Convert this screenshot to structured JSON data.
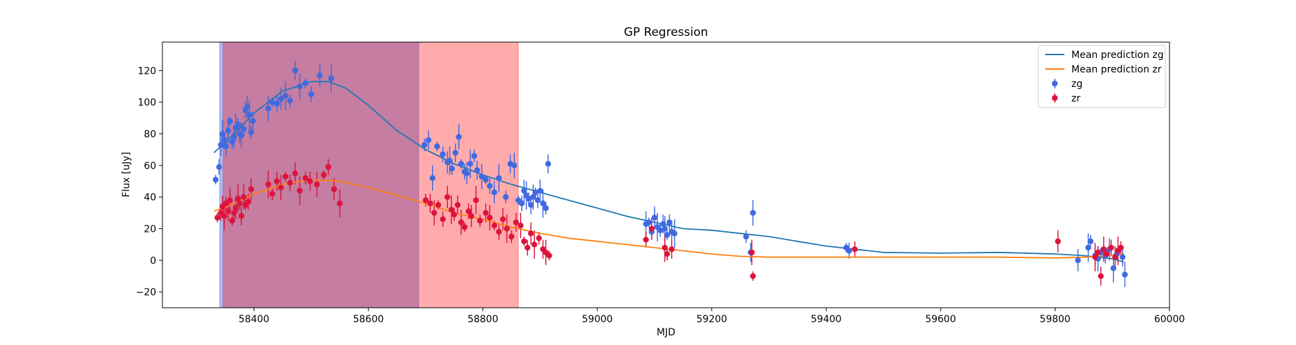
{
  "chart_data": {
    "type": "scatter",
    "title": "GP Regression",
    "xlabel": "MJD",
    "ylabel": "Flux [uJy]",
    "xlim": [
      58240,
      60000
    ],
    "ylim": [
      -30,
      138
    ],
    "xticks": [
      58400,
      58600,
      58800,
      59000,
      59200,
      59400,
      59600,
      59800,
      60000
    ],
    "yticks": [
      -20,
      0,
      20,
      40,
      60,
      80,
      100,
      120
    ],
    "grid": false,
    "legend_position": "top-right",
    "shaded_regions": [
      {
        "x0": 58340,
        "x1": 58688,
        "color": "#4169e1",
        "alpha": 0.45
      },
      {
        "x0": 58346,
        "x1": 58862,
        "color": "#ff0000",
        "alpha": 0.33
      }
    ],
    "lines": [
      {
        "name": "Mean prediction zg",
        "color": "#1f77b4",
        "x": [
          58330,
          58360,
          58400,
          58450,
          58500,
          58530,
          58560,
          58600,
          58650,
          58700,
          58750,
          58800,
          58850,
          58900,
          58950,
          59000,
          59050,
          59100,
          59150,
          59200,
          59250,
          59300,
          59350,
          59400,
          59450,
          59500,
          59600,
          59700,
          59800,
          59850,
          59900,
          59920
        ],
        "y": [
          68,
          78,
          93,
          107,
          113,
          113,
          109,
          98,
          82,
          70,
          61,
          54,
          48,
          43,
          38,
          33,
          28,
          24,
          20,
          19,
          17,
          15,
          12,
          9,
          7,
          5,
          4.5,
          5,
          4,
          3,
          1,
          -1
        ]
      },
      {
        "name": "Mean prediction zr",
        "color": "#ff7f0e",
        "x": [
          58330,
          58360,
          58400,
          58450,
          58500,
          58550,
          58600,
          58650,
          58700,
          58750,
          58800,
          58850,
          58900,
          58950,
          59000,
          59050,
          59100,
          59150,
          59200,
          59250,
          59300,
          59400,
          59500,
          59600,
          59700,
          59800,
          59850,
          59900,
          59920
        ],
        "y": [
          31,
          35,
          42,
          48,
          51,
          50,
          46,
          41,
          36,
          30,
          26,
          21,
          17,
          14,
          12,
          10,
          8,
          6,
          4,
          2.5,
          2,
          2,
          2,
          2,
          2,
          1.5,
          2,
          3,
          4
        ]
      }
    ],
    "series": [
      {
        "name": "zg",
        "color": "#4169e1",
        "x": [
          58333,
          58339,
          58342,
          58345,
          58348,
          58351,
          58355,
          58358,
          58362,
          58365,
          58368,
          58372,
          58375,
          58378,
          58382,
          58385,
          58388,
          58392,
          58395,
          58398,
          58425,
          58432,
          58440,
          58447,
          58455,
          58463,
          58472,
          58480,
          58490,
          58500,
          58515,
          58535,
          58698,
          58705,
          58712,
          58720,
          58730,
          58738,
          58742,
          58746,
          58752,
          58758,
          58762,
          58768,
          58772,
          58778,
          58785,
          58790,
          58798,
          58805,
          58812,
          58820,
          58828,
          58840,
          58848,
          58855,
          58862,
          58868,
          58872,
          58876,
          58880,
          58884,
          58888,
          58892,
          58896,
          58900,
          58905,
          58910,
          58914,
          59085,
          59090,
          59095,
          59100,
          59105,
          59110,
          59115,
          59118,
          59122,
          59126,
          59130,
          59135,
          59260,
          59268,
          59272,
          59435,
          59440,
          59840,
          59858,
          59862,
          59870,
          59875,
          59880,
          59888,
          59895,
          59902,
          59908,
          59918,
          59922
        ],
        "y": [
          51,
          59,
          73,
          80,
          76,
          72,
          82,
          88,
          75,
          78,
          84,
          86,
          80,
          79,
          83,
          95,
          97,
          92,
          81,
          88,
          96,
          100,
          99,
          102,
          104,
          101,
          120,
          110,
          112,
          105,
          117,
          115,
          73,
          76,
          52,
          72,
          67,
          62,
          63,
          58,
          68,
          78,
          61,
          56,
          55,
          61,
          66,
          57,
          53,
          51,
          47,
          43,
          52,
          40,
          61,
          60,
          38,
          36,
          44,
          41,
          39,
          35,
          40,
          43,
          38,
          44,
          36,
          33,
          61,
          23,
          24,
          18,
          27,
          21,
          19,
          23,
          20,
          16,
          24,
          18,
          17,
          15,
          5,
          30,
          8,
          6,
          0,
          8,
          12,
          3,
          1,
          5,
          3,
          7,
          -5,
          4,
          2,
          -9
        ]
      },
      {
        "name": "zr",
        "color": "#dc143c",
        "x": [
          58336,
          58342,
          58345,
          58348,
          58351,
          58355,
          58358,
          58362,
          58365,
          58368,
          58372,
          58375,
          58378,
          58382,
          58385,
          58390,
          58395,
          58425,
          58432,
          58440,
          58447,
          58455,
          58463,
          58472,
          58480,
          58490,
          58498,
          58510,
          58522,
          58530,
          58540,
          58550,
          58700,
          58708,
          58715,
          58722,
          58730,
          58738,
          58745,
          58750,
          58756,
          58762,
          58768,
          58775,
          58780,
          58788,
          58795,
          58805,
          58812,
          58820,
          58828,
          58835,
          58842,
          58850,
          58858,
          58866,
          58872,
          58878,
          58884,
          58890,
          58898,
          58905,
          58910,
          58916,
          59085,
          59095,
          59118,
          59122,
          59130,
          59270,
          59272,
          59450,
          59805,
          59870,
          59875,
          59880,
          59885,
          59890,
          59898,
          59905,
          59910,
          59915
        ],
        "y": [
          27,
          30,
          34,
          28,
          36,
          31,
          38,
          25,
          30,
          33,
          39,
          36,
          28,
          40,
          35,
          37,
          45,
          48,
          42,
          50,
          46,
          53,
          49,
          55,
          44,
          52,
          50,
          48,
          54,
          59,
          45,
          36,
          38,
          36,
          30,
          35,
          26,
          40,
          32,
          29,
          35,
          24,
          21,
          31,
          28,
          38,
          25,
          30,
          27,
          22,
          18,
          26,
          20,
          15,
          24,
          22,
          12,
          8,
          17,
          10,
          14,
          7,
          5,
          3,
          13,
          20,
          8,
          4,
          7,
          5,
          -10,
          7,
          12,
          2,
          5,
          -10,
          7,
          4,
          8,
          2,
          6,
          8
        ]
      }
    ],
    "legend": [
      "Mean prediction zg",
      "Mean prediction zr",
      "zg",
      "zr"
    ]
  }
}
